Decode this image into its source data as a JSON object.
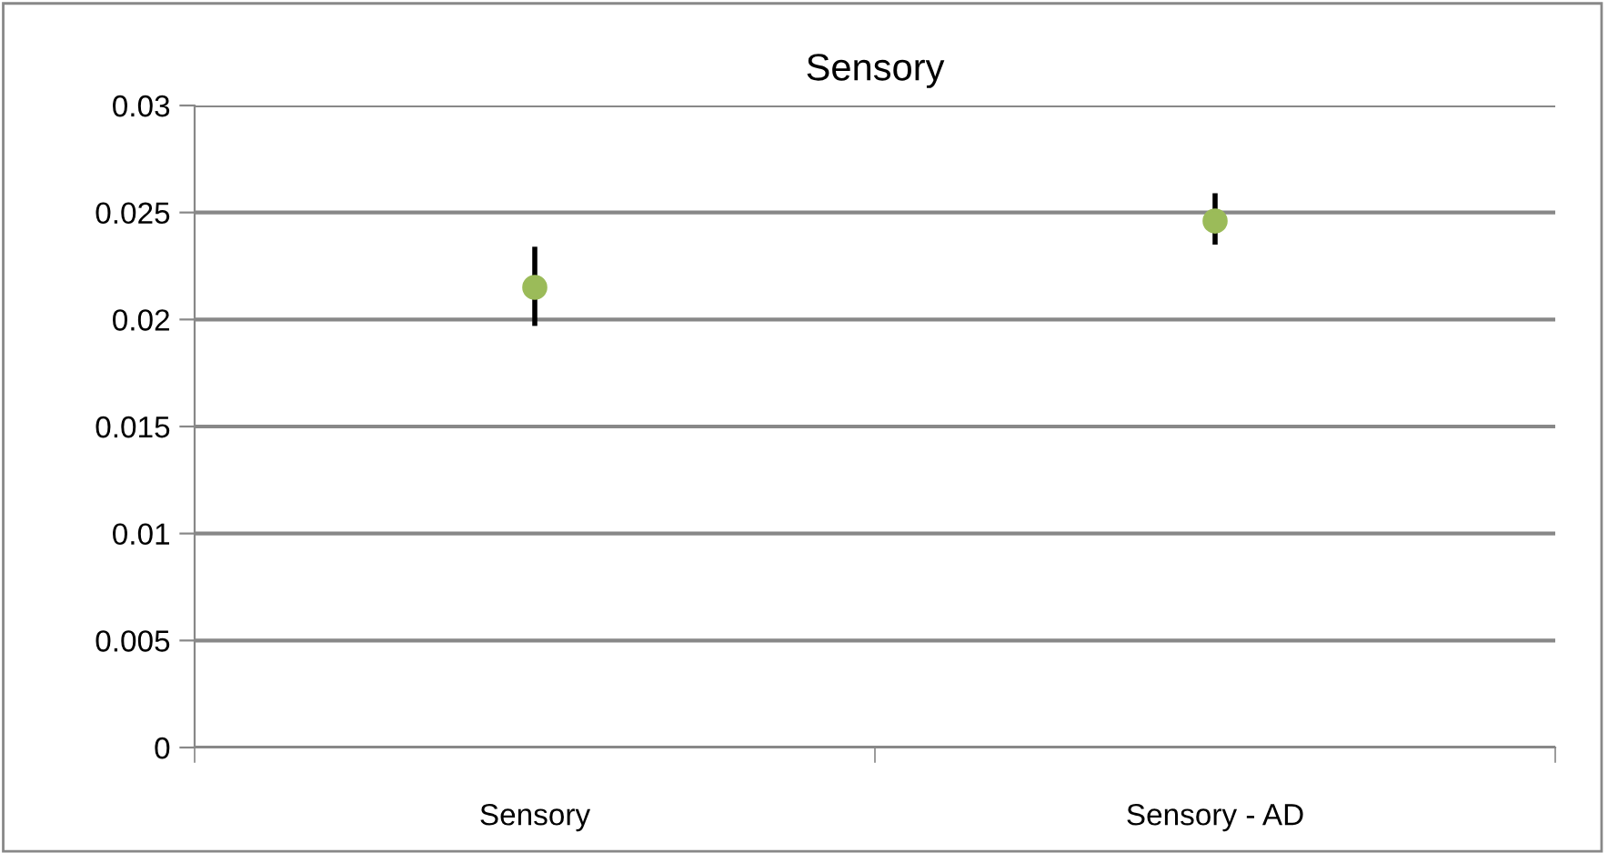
{
  "chart_data": {
    "type": "scatter",
    "title": "Sensory",
    "categories": [
      "Sensory",
      "Sensory - AD"
    ],
    "series": [
      {
        "color": "#9bbb59",
        "values": [
          0.0215,
          0.0246
        ],
        "errors": [
          [
            0.0197,
            0.0234
          ],
          [
            0.0235,
            0.0259
          ]
        ]
      }
    ],
    "ylim": [
      0,
      0.03
    ],
    "yticks": [
      0,
      0.005,
      0.01,
      0.015,
      0.02,
      0.025,
      0.03
    ],
    "grid": "y",
    "marker": "circle",
    "legend": false
  }
}
